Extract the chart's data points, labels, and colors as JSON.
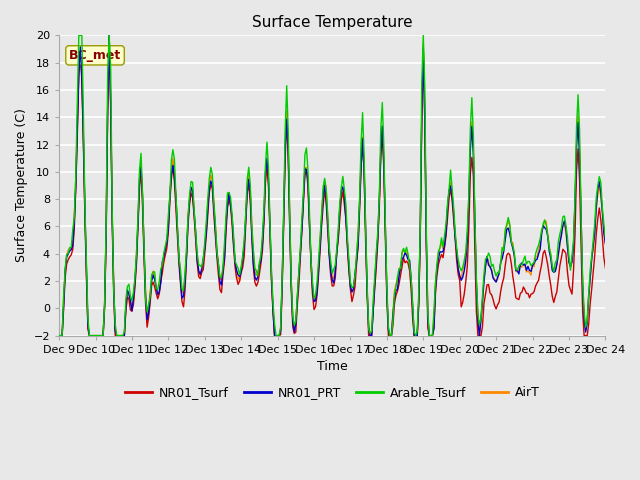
{
  "title": "Surface Temperature",
  "ylabel": "Surface Temperature (C)",
  "xlabel": "Time",
  "ylim": [
    -2,
    20
  ],
  "yticks": [
    -2,
    0,
    2,
    4,
    6,
    8,
    10,
    12,
    14,
    16,
    18,
    20
  ],
  "xlim": [
    0,
    360
  ],
  "xtick_labels": [
    "Dec 9",
    "Dec 10",
    "Dec 11",
    "Dec 12",
    "Dec 13",
    "Dec 14",
    "Dec 15",
    "Dec 16",
    "Dec 17",
    "Dec 18",
    "Dec 19",
    "Dec 20",
    "Dec 21",
    "Dec 22",
    "Dec 23",
    "Dec 24"
  ],
  "xtick_positions": [
    0,
    24,
    48,
    72,
    96,
    120,
    144,
    168,
    192,
    216,
    240,
    264,
    288,
    312,
    336,
    360
  ],
  "colors": {
    "NR01_Tsurf": "#cc0000",
    "NR01_PRT": "#0000cc",
    "Arable_Tsurf": "#00cc00",
    "AirT": "#ff8800"
  },
  "legend_labels": [
    "NR01_Tsurf",
    "NR01_PRT",
    "Arable_Tsurf",
    "AirT"
  ],
  "annotation_text": "BC_met",
  "annotation_color": "#880000",
  "annotation_bg": "#ffffcc",
  "annotation_edge": "#999900",
  "fig_bg": "#e8e8e8",
  "plot_bg": "#e8e8e8",
  "grid_color": "#ffffff",
  "grid_lw": 1.2,
  "line_lw": 1.0,
  "title_fontsize": 11,
  "axis_fontsize": 9,
  "tick_fontsize": 8
}
